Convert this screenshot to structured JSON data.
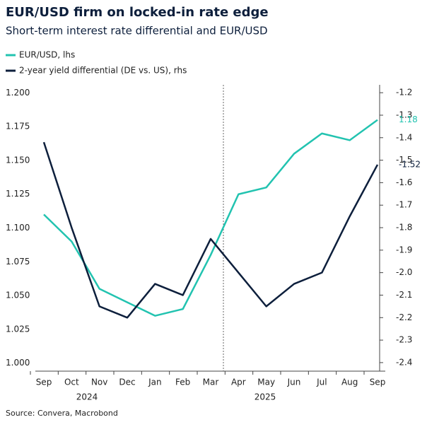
{
  "chart_data": {
    "type": "line",
    "title": "EUR/USD firm on locked-in rate edge",
    "subtitle": "Short-term interest rate differential and EUR/USD",
    "source": "Source: Convera, Macrobond",
    "categories": [
      "Sep",
      "Oct",
      "Nov",
      "Dec",
      "Jan",
      "Feb",
      "Mar",
      "Apr",
      "May",
      "Jun",
      "Jul",
      "Aug",
      "Sep"
    ],
    "x_groups": [
      "2024",
      "2025"
    ],
    "series": [
      {
        "name": "EUR/USD, lhs",
        "color": "#22c3b0",
        "values": [
          1.11,
          1.09,
          1.055,
          1.045,
          1.035,
          1.04,
          1.08,
          1.125,
          1.13,
          1.155,
          1.17,
          1.165,
          1.18
        ]
      },
      {
        "name": "2-year yield differential (DE vs. US), rhs",
        "color": "#0d1f3c",
        "axis": "y2",
        "values": [
          -1.42,
          -1.8,
          -2.15,
          -2.2,
          -2.05,
          -2.1,
          -1.85,
          -2.0,
          -2.15,
          -2.05,
          -2.0,
          -1.75,
          -1.52
        ]
      }
    ],
    "end_labels": [
      {
        "series": 0,
        "value": 1.18
      },
      {
        "series": 1,
        "value": -1.52
      }
    ],
    "ylim": [
      0.994,
      1.206
    ],
    "yticks": [
      {
        "value": 1.0,
        "label": "1.000"
      },
      {
        "value": 1.025,
        "label": "1.025"
      },
      {
        "value": 1.05,
        "label": "1.050"
      },
      {
        "value": 1.075,
        "label": "1.075"
      },
      {
        "value": 1.1,
        "label": "1.100"
      },
      {
        "value": 1.125,
        "label": "1.125"
      },
      {
        "value": 1.15,
        "label": "1.150"
      },
      {
        "value": 1.175,
        "label": "1.175"
      },
      {
        "value": 1.2,
        "label": "1.200"
      }
    ],
    "y2lim": [
      -2.438,
      -1.165
    ],
    "y2ticks": [
      -1.2,
      -1.3,
      -1.4,
      -1.5,
      -1.6,
      -1.7,
      -1.8,
      -1.9,
      {
        "value": -2.0,
        "label": "-2.0"
      },
      -2.1,
      -2.2,
      -2.3,
      -2.4
    ]
  }
}
